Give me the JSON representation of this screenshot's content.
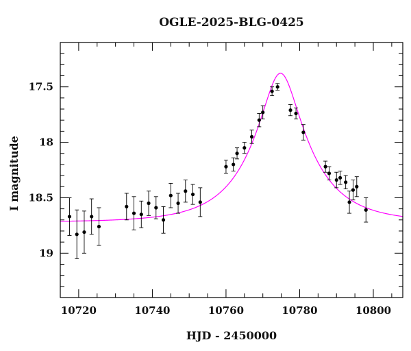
{
  "chart_data": {
    "type": "scatter",
    "title": "OGLE-2025-BLG-0425",
    "xlabel": "HJD - 2450000",
    "ylabel": "I magnitude",
    "xlim": [
      10715,
      10808
    ],
    "ylim": [
      19.4,
      17.1
    ],
    "y_inverted": true,
    "x_ticks": [
      10720,
      10740,
      10760,
      10780,
      10800
    ],
    "x_tick_labels": [
      "10720",
      "10740",
      "10760",
      "10780",
      "10800"
    ],
    "y_ticks": [
      17.5,
      18,
      18.5,
      19
    ],
    "y_tick_labels": [
      "17.5",
      "18",
      "18.5",
      "19"
    ],
    "x_minor_step": 5,
    "y_minor_step": 0.1,
    "grid": false,
    "colors": {
      "points": "#000000",
      "model": "#ff00ff",
      "axes": "#000000"
    },
    "series": [
      {
        "kind": "points_with_errorbars",
        "points": [
          {
            "x": 10717.5,
            "y": 18.67,
            "err": 0.17
          },
          {
            "x": 10719.5,
            "y": 18.83,
            "err": 0.22
          },
          {
            "x": 10721.5,
            "y": 18.81,
            "err": 0.19
          },
          {
            "x": 10723.5,
            "y": 18.67,
            "err": 0.16
          },
          {
            "x": 10725.5,
            "y": 18.76,
            "err": 0.17
          },
          {
            "x": 10733.0,
            "y": 18.58,
            "err": 0.12
          },
          {
            "x": 10735.0,
            "y": 18.64,
            "err": 0.15
          },
          {
            "x": 10737.0,
            "y": 18.65,
            "err": 0.12
          },
          {
            "x": 10739.0,
            "y": 18.55,
            "err": 0.11
          },
          {
            "x": 10741.0,
            "y": 18.59,
            "err": 0.1
          },
          {
            "x": 10743.0,
            "y": 18.7,
            "err": 0.12
          },
          {
            "x": 10745.0,
            "y": 18.48,
            "err": 0.11
          },
          {
            "x": 10747.0,
            "y": 18.55,
            "err": 0.09
          },
          {
            "x": 10749.0,
            "y": 18.44,
            "err": 0.1
          },
          {
            "x": 10751.0,
            "y": 18.47,
            "err": 0.09
          },
          {
            "x": 10753.0,
            "y": 18.54,
            "err": 0.13
          },
          {
            "x": 10760.0,
            "y": 18.22,
            "err": 0.06
          },
          {
            "x": 10762.0,
            "y": 18.2,
            "err": 0.06
          },
          {
            "x": 10763.0,
            "y": 18.1,
            "err": 0.05
          },
          {
            "x": 10765.0,
            "y": 18.05,
            "err": 0.05
          },
          {
            "x": 10767.0,
            "y": 17.95,
            "err": 0.06
          },
          {
            "x": 10769.0,
            "y": 17.8,
            "err": 0.06
          },
          {
            "x": 10770.0,
            "y": 17.73,
            "err": 0.06
          },
          {
            "x": 10772.5,
            "y": 17.54,
            "err": 0.04
          },
          {
            "x": 10774.0,
            "y": 17.5,
            "err": 0.03
          },
          {
            "x": 10777.5,
            "y": 17.71,
            "err": 0.05
          },
          {
            "x": 10779.0,
            "y": 17.74,
            "err": 0.05
          },
          {
            "x": 10781.0,
            "y": 17.91,
            "err": 0.07
          },
          {
            "x": 10787.0,
            "y": 18.22,
            "err": 0.05
          },
          {
            "x": 10788.0,
            "y": 18.28,
            "err": 0.06
          },
          {
            "x": 10790.0,
            "y": 18.34,
            "err": 0.07
          },
          {
            "x": 10791.0,
            "y": 18.32,
            "err": 0.06
          },
          {
            "x": 10792.5,
            "y": 18.36,
            "err": 0.06
          },
          {
            "x": 10793.5,
            "y": 18.54,
            "err": 0.1
          },
          {
            "x": 10794.5,
            "y": 18.43,
            "err": 0.09
          },
          {
            "x": 10795.5,
            "y": 18.4,
            "err": 0.09
          },
          {
            "x": 10798.0,
            "y": 18.61,
            "err": 0.11
          }
        ]
      },
      {
        "kind": "model_curve",
        "model": {
          "t0": 10774.8,
          "tE": 15.5,
          "u0": 0.3,
          "I_base": 18.72
        }
      }
    ]
  }
}
